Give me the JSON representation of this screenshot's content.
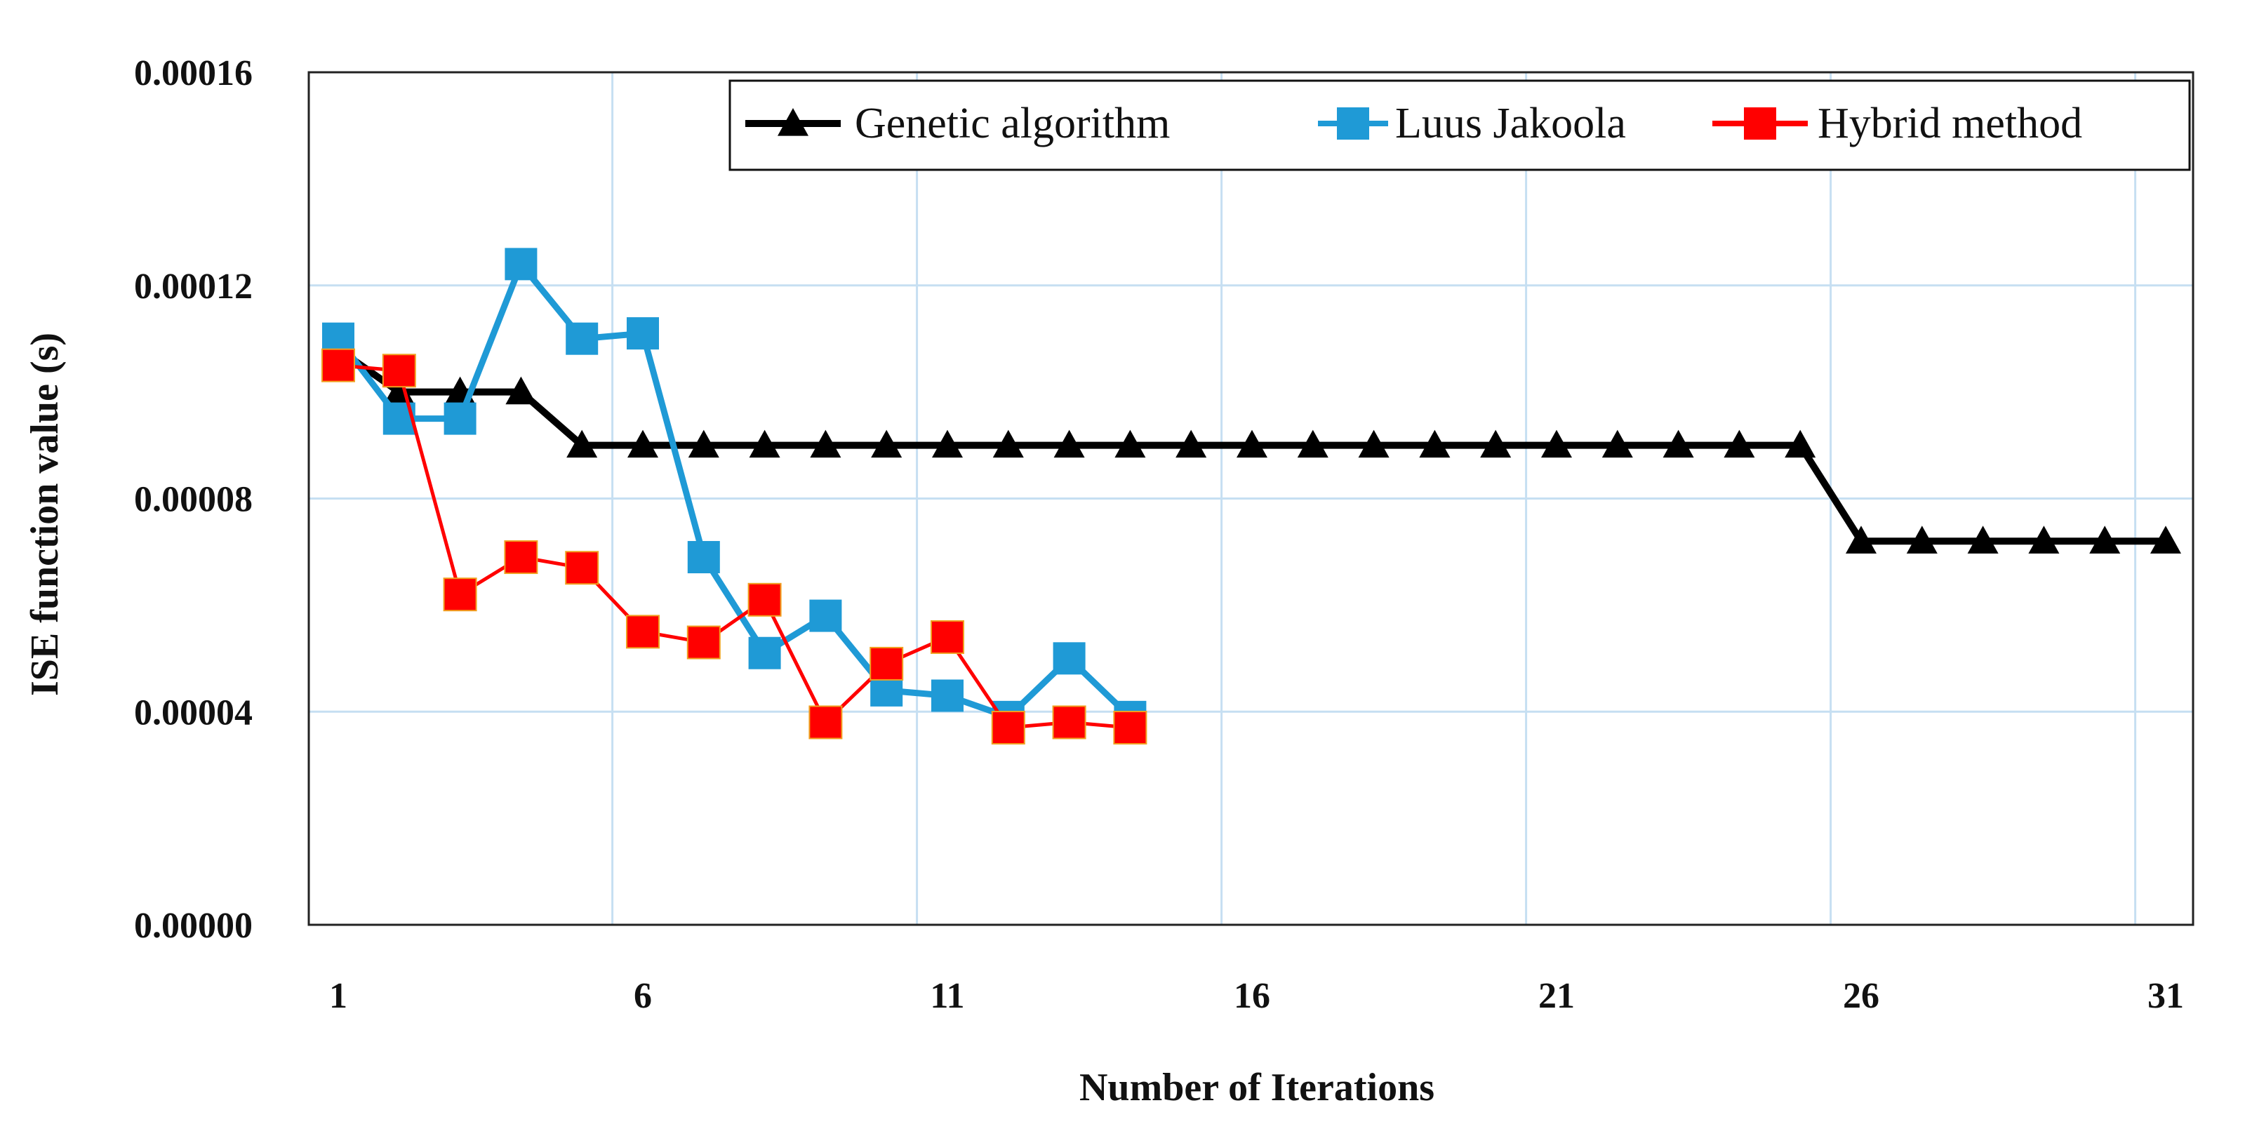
{
  "chart_data": {
    "type": "line",
    "title": "",
    "xlabel": "Number of Iterations",
    "ylabel": "ISE function value (s)",
    "xlim": [
      0.5,
      31.5
    ],
    "ylim": [
      0,
      0.00016
    ],
    "x_ticks": [
      1,
      6,
      11,
      16,
      21,
      26,
      31
    ],
    "x_tick_labels": [
      "1",
      "6",
      "11",
      "16",
      "21",
      "26",
      "31"
    ],
    "y_ticks": [
      0,
      4e-05,
      8e-05,
      0.00012,
      0.00016
    ],
    "y_tick_labels": [
      "0.00000",
      "0.00004",
      "0.00008",
      "0.00012",
      "0.00016"
    ],
    "grid": true,
    "legend_position": "top-right",
    "series": [
      {
        "name": "Genetic algorithm",
        "color": "#000000",
        "marker": "triangle",
        "x": [
          1,
          2,
          3,
          4,
          5,
          6,
          7,
          8,
          9,
          10,
          11,
          12,
          13,
          14,
          15,
          16,
          17,
          18,
          19,
          20,
          21,
          22,
          23,
          24,
          25,
          26,
          27,
          28,
          29,
          30,
          31
        ],
        "values": [
          0.000108,
          0.0001,
          0.0001,
          0.0001,
          9e-05,
          9e-05,
          9e-05,
          9e-05,
          9e-05,
          9e-05,
          9e-05,
          9e-05,
          9e-05,
          9e-05,
          9e-05,
          9e-05,
          9e-05,
          9e-05,
          9e-05,
          9e-05,
          9e-05,
          9e-05,
          9e-05,
          9e-05,
          9e-05,
          7.2e-05,
          7.2e-05,
          7.2e-05,
          7.2e-05,
          7.2e-05,
          7.2e-05
        ]
      },
      {
        "name": "Luus Jakoola",
        "color": "#1f9ad6",
        "marker": "square",
        "x": [
          1,
          2,
          3,
          4,
          5,
          6,
          7,
          8,
          9,
          10,
          11,
          12,
          13,
          14
        ],
        "values": [
          0.00011,
          9.5e-05,
          9.5e-05,
          0.000124,
          0.00011,
          0.000111,
          6.9e-05,
          5.1e-05,
          5.8e-05,
          4.4e-05,
          4.3e-05,
          3.9e-05,
          5e-05,
          3.9e-05
        ]
      },
      {
        "name": "Hybrid method",
        "color": "#ff0000",
        "marker": "square",
        "x": [
          1,
          2,
          3,
          4,
          5,
          6,
          7,
          8,
          9,
          10,
          11,
          12,
          13,
          14
        ],
        "values": [
          0.000105,
          0.000104,
          6.2e-05,
          6.9e-05,
          6.7e-05,
          5.5e-05,
          5.3e-05,
          6.1e-05,
          3.8e-05,
          4.9e-05,
          5.4e-05,
          3.7e-05,
          3.8e-05,
          3.7e-05
        ]
      }
    ]
  }
}
